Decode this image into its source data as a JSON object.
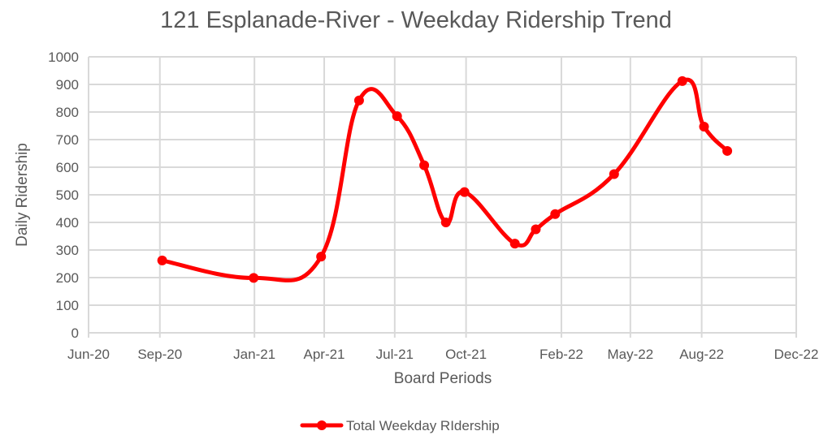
{
  "chart_data": {
    "type": "line",
    "title": "121 Esplanade-River - Weekday Ridership Trend",
    "xlabel": "Board Periods",
    "ylabel": "Daily Ridership",
    "ylim": [
      0,
      1000
    ],
    "yticks": [
      0,
      100,
      200,
      300,
      400,
      500,
      600,
      700,
      800,
      900,
      1000
    ],
    "xlim": [
      "2020-06-01",
      "2022-12-01"
    ],
    "xticks": [
      {
        "date": "2020-06-01",
        "label": "Jun-20"
      },
      {
        "date": "2020-09-01",
        "label": "Sep-20"
      },
      {
        "date": "2021-01-01",
        "label": "Jan-21"
      },
      {
        "date": "2021-04-01",
        "label": "Apr-21"
      },
      {
        "date": "2021-07-01",
        "label": "Jul-21"
      },
      {
        "date": "2021-10-01",
        "label": "Oct-21"
      },
      {
        "date": "2022-02-01",
        "label": "Feb-22"
      },
      {
        "date": "2022-05-01",
        "label": "May-22"
      },
      {
        "date": "2022-08-01",
        "label": "Aug-22"
      },
      {
        "date": "2022-12-01",
        "label": "Dec-22"
      }
    ],
    "grid": true,
    "legend_position": "bottom",
    "series": [
      {
        "name": "Total Weekday RIdership",
        "color": "#ff0000",
        "smooth": true,
        "points": [
          {
            "x": "2020-09-04",
            "y": 262
          },
          {
            "x": "2020-12-31",
            "y": 199
          },
          {
            "x": "2021-03-28",
            "y": 276
          },
          {
            "x": "2021-05-16",
            "y": 842
          },
          {
            "x": "2021-07-04",
            "y": 785
          },
          {
            "x": "2021-08-08",
            "y": 607
          },
          {
            "x": "2021-09-05",
            "y": 400
          },
          {
            "x": "2021-09-29",
            "y": 510
          },
          {
            "x": "2021-12-03",
            "y": 323
          },
          {
            "x": "2021-12-30",
            "y": 375
          },
          {
            "x": "2022-01-24",
            "y": 430
          },
          {
            "x": "2022-04-10",
            "y": 575
          },
          {
            "x": "2022-07-07",
            "y": 912
          },
          {
            "x": "2022-08-04",
            "y": 747
          },
          {
            "x": "2022-09-03",
            "y": 659
          }
        ]
      }
    ]
  }
}
